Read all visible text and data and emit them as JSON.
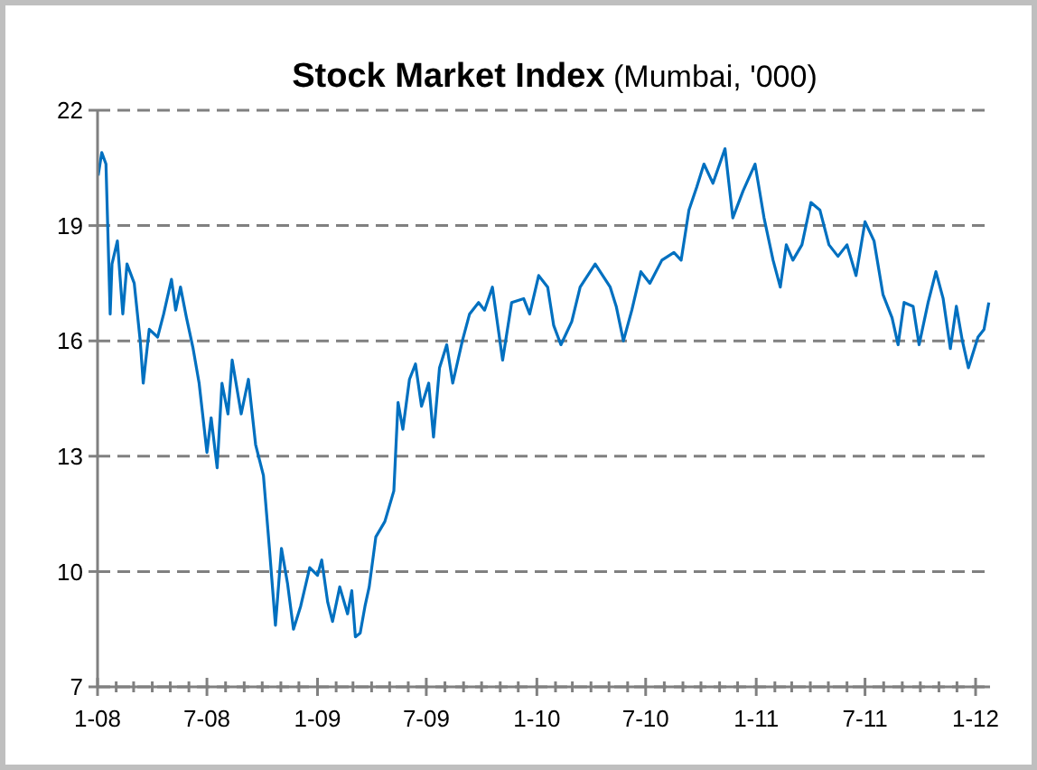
{
  "chart_data": {
    "type": "line",
    "title": "Stock Market Index",
    "subtitle": "(Mumbai, '000)",
    "x": [
      "2008-01-02",
      "2008-01-08",
      "2008-01-15",
      "2008-01-22",
      "2008-01-25",
      "2008-02-03",
      "2008-02-12",
      "2008-02-19",
      "2008-03-02",
      "2008-03-12",
      "2008-03-17",
      "2008-03-27",
      "2008-04-10",
      "2008-04-20",
      "2008-05-03",
      "2008-05-10",
      "2008-05-18",
      "2008-05-28",
      "2008-06-08",
      "2008-06-18",
      "2008-07-01",
      "2008-07-08",
      "2008-07-18",
      "2008-07-26",
      "2008-08-05",
      "2008-08-12",
      "2008-08-27",
      "2008-09-08",
      "2008-09-20",
      "2008-10-03",
      "2008-10-13",
      "2008-10-23",
      "2008-11-02",
      "2008-11-12",
      "2008-11-22",
      "2008-12-04",
      "2008-12-19",
      "2009-01-01",
      "2009-01-08",
      "2009-01-18",
      "2009-01-26",
      "2009-02-07",
      "2009-02-20",
      "2009-02-27",
      "2009-03-05",
      "2009-03-13",
      "2009-03-21",
      "2009-03-28",
      "2009-04-08",
      "2009-04-23",
      "2009-05-08",
      "2009-05-15",
      "2009-05-23",
      "2009-06-03",
      "2009-06-13",
      "2009-06-23",
      "2009-07-05",
      "2009-07-13",
      "2009-07-23",
      "2009-08-04",
      "2009-08-14",
      "2009-08-30",
      "2009-09-11",
      "2009-09-26",
      "2009-10-06",
      "2009-10-19",
      "2009-11-05",
      "2009-11-20",
      "2009-12-10",
      "2009-12-20",
      "2010-01-04",
      "2010-01-19",
      "2010-01-29",
      "2010-02-10",
      "2010-02-28",
      "2010-03-14",
      "2010-04-08",
      "2010-05-03",
      "2010-05-13",
      "2010-05-25",
      "2010-06-08",
      "2010-06-23",
      "2010-07-08",
      "2010-07-28",
      "2010-08-17",
      "2010-08-29",
      "2010-09-11",
      "2010-09-24",
      "2010-10-06",
      "2010-10-21",
      "2010-11-10",
      "2010-11-23",
      "2010-12-10",
      "2010-12-30",
      "2011-01-14",
      "2011-01-29",
      "2011-02-10",
      "2011-02-20",
      "2011-03-03",
      "2011-03-18",
      "2011-04-02",
      "2011-04-17",
      "2011-05-02",
      "2011-05-17",
      "2011-06-01",
      "2011-06-16",
      "2011-07-01",
      "2011-07-16",
      "2011-07-31",
      "2011-08-15",
      "2011-08-25",
      "2011-09-04",
      "2011-09-19",
      "2011-09-29",
      "2011-10-14",
      "2011-10-27",
      "2011-11-08",
      "2011-11-20",
      "2011-11-30",
      "2011-12-10",
      "2011-12-20",
      "2012-01-05",
      "2012-01-15",
      "2012-01-23"
    ],
    "series": [
      {
        "color": "#0070c0",
        "values": [
          20.3,
          20.9,
          20.6,
          16.7,
          18.0,
          18.6,
          16.7,
          18.0,
          17.5,
          16.0,
          14.9,
          16.3,
          16.1,
          16.7,
          17.6,
          16.8,
          17.4,
          16.6,
          15.8,
          14.9,
          13.1,
          14.0,
          12.7,
          14.9,
          14.1,
          15.5,
          14.1,
          15.0,
          13.3,
          12.5,
          10.6,
          8.6,
          10.6,
          9.7,
          8.5,
          9.1,
          10.1,
          9.9,
          10.3,
          9.2,
          8.7,
          9.6,
          8.9,
          9.5,
          8.3,
          8.4,
          9.1,
          9.6,
          10.9,
          11.3,
          12.1,
          14.4,
          13.7,
          15.0,
          15.4,
          14.3,
          14.9,
          13.5,
          15.3,
          15.9,
          14.9,
          16.0,
          16.7,
          17.0,
          16.8,
          17.4,
          15.5,
          17.0,
          17.1,
          16.7,
          17.7,
          17.4,
          16.4,
          15.9,
          16.5,
          17.4,
          18.0,
          17.4,
          16.9,
          16.0,
          16.8,
          17.8,
          17.5,
          18.1,
          18.3,
          18.1,
          19.4,
          20.0,
          20.6,
          20.1,
          21.0,
          19.2,
          19.9,
          20.6,
          19.2,
          18.1,
          17.4,
          18.5,
          18.1,
          18.5,
          19.6,
          19.4,
          18.5,
          18.2,
          18.5,
          17.7,
          19.1,
          18.6,
          17.2,
          16.6,
          15.9,
          17.0,
          16.9,
          15.9,
          17.0,
          17.8,
          17.1,
          15.8,
          16.9,
          16.0,
          15.3,
          16.1,
          16.3,
          17.0
        ]
      }
    ],
    "xlim": [
      "2008-01-01",
      "2012-01-25"
    ],
    "xticks": [
      {
        "value": "2008-01-01",
        "label": "1-08"
      },
      {
        "value": "2008-02-01",
        "label": null
      },
      {
        "value": "2008-03-01",
        "label": null
      },
      {
        "value": "2008-04-01",
        "label": null
      },
      {
        "value": "2008-05-01",
        "label": null
      },
      {
        "value": "2008-06-01",
        "label": null
      },
      {
        "value": "2008-07-01",
        "label": "7-08"
      },
      {
        "value": "2008-08-01",
        "label": null
      },
      {
        "value": "2008-09-01",
        "label": null
      },
      {
        "value": "2008-10-01",
        "label": null
      },
      {
        "value": "2008-11-01",
        "label": null
      },
      {
        "value": "2008-12-01",
        "label": null
      },
      {
        "value": "2009-01-01",
        "label": "1-09"
      },
      {
        "value": "2009-02-01",
        "label": null
      },
      {
        "value": "2009-03-01",
        "label": null
      },
      {
        "value": "2009-04-01",
        "label": null
      },
      {
        "value": "2009-05-01",
        "label": null
      },
      {
        "value": "2009-06-01",
        "label": null
      },
      {
        "value": "2009-07-01",
        "label": "7-09"
      },
      {
        "value": "2009-08-01",
        "label": null
      },
      {
        "value": "2009-09-01",
        "label": null
      },
      {
        "value": "2009-10-01",
        "label": null
      },
      {
        "value": "2009-11-01",
        "label": null
      },
      {
        "value": "2009-12-01",
        "label": null
      },
      {
        "value": "2010-01-01",
        "label": "1-10"
      },
      {
        "value": "2010-02-01",
        "label": null
      },
      {
        "value": "2010-03-01",
        "label": null
      },
      {
        "value": "2010-04-01",
        "label": null
      },
      {
        "value": "2010-05-01",
        "label": null
      },
      {
        "value": "2010-06-01",
        "label": null
      },
      {
        "value": "2010-07-01",
        "label": "7-10"
      },
      {
        "value": "2010-08-01",
        "label": null
      },
      {
        "value": "2010-09-01",
        "label": null
      },
      {
        "value": "2010-10-01",
        "label": null
      },
      {
        "value": "2010-11-01",
        "label": null
      },
      {
        "value": "2010-12-01",
        "label": null
      },
      {
        "value": "2011-01-01",
        "label": "1-11"
      },
      {
        "value": "2011-02-01",
        "label": null
      },
      {
        "value": "2011-03-01",
        "label": null
      },
      {
        "value": "2011-04-01",
        "label": null
      },
      {
        "value": "2011-05-01",
        "label": null
      },
      {
        "value": "2011-06-01",
        "label": null
      },
      {
        "value": "2011-07-01",
        "label": "7-11"
      },
      {
        "value": "2011-08-01",
        "label": null
      },
      {
        "value": "2011-09-01",
        "label": null
      },
      {
        "value": "2011-10-01",
        "label": null
      },
      {
        "value": "2011-11-01",
        "label": null
      },
      {
        "value": "2011-12-01",
        "label": null
      },
      {
        "value": "2012-01-01",
        "label": "1-12"
      }
    ],
    "ylim": [
      7,
      22
    ],
    "yticks": [
      7,
      10,
      13,
      16,
      19,
      22
    ],
    "grid": "y",
    "line_style": "solid",
    "marker": "none"
  }
}
